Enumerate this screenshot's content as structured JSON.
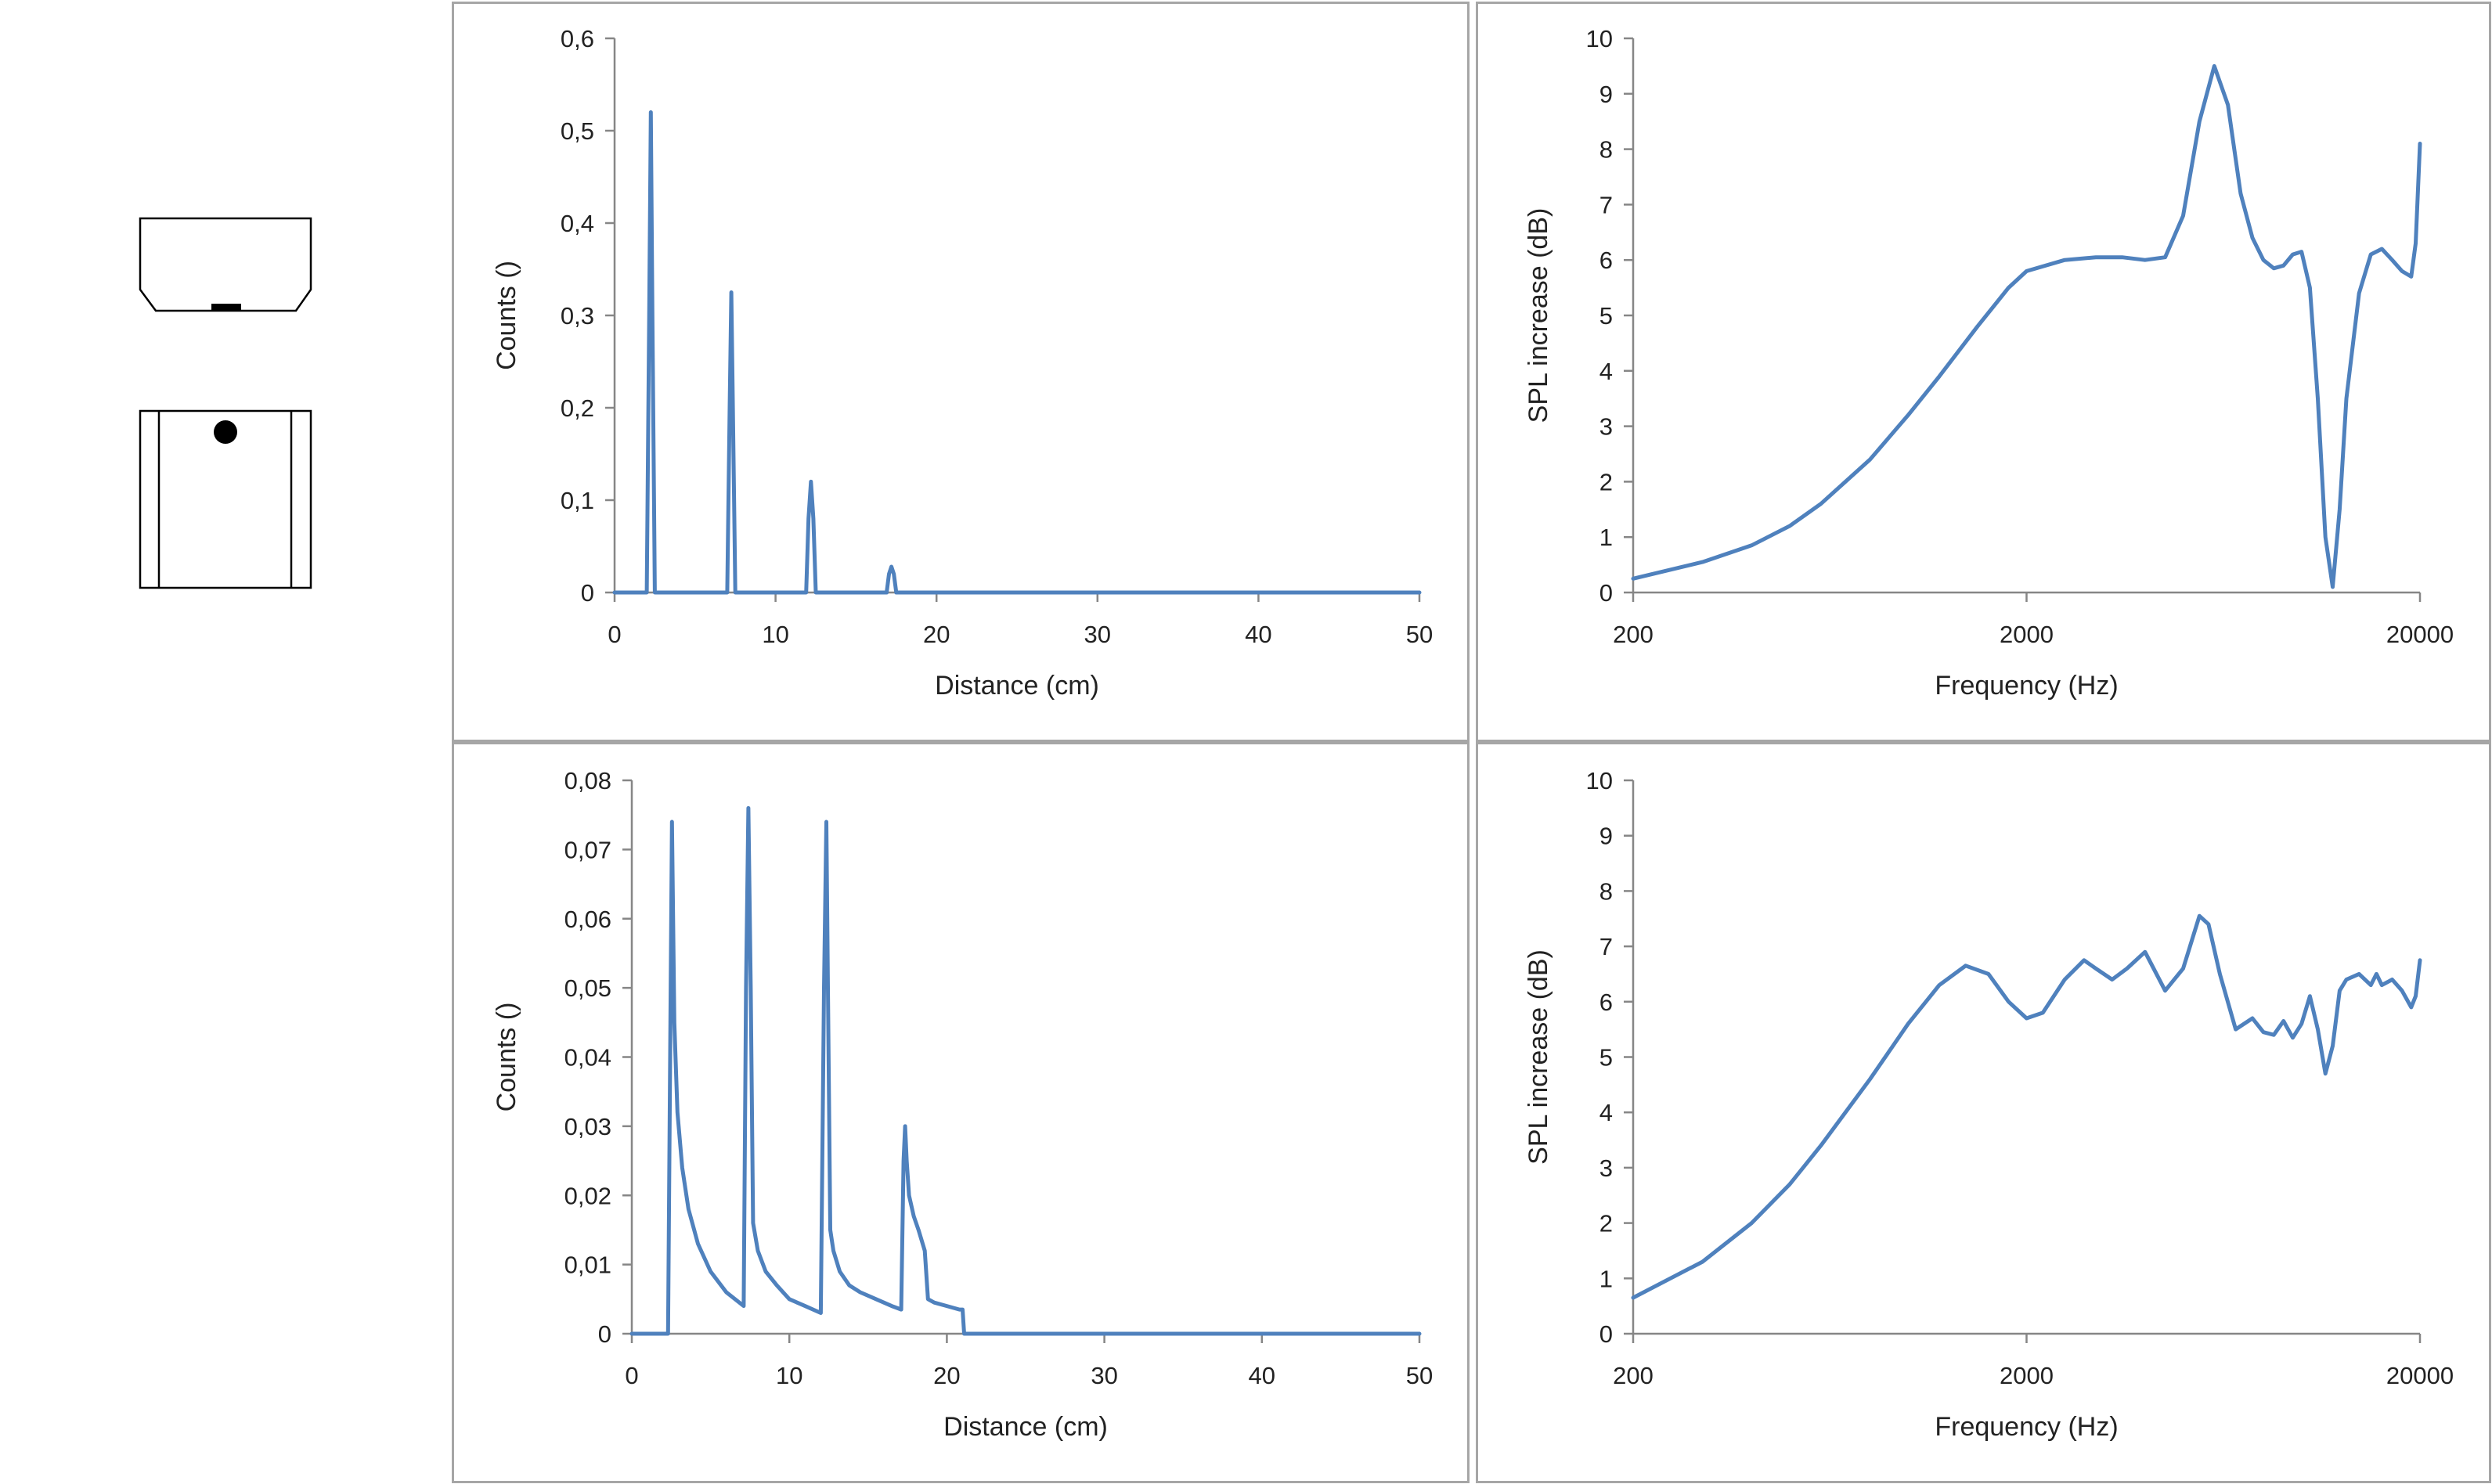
{
  "line_color": "#4f81bd",
  "chart_data": [
    {
      "id": "top-left",
      "type": "line",
      "xlabel": "Distance (cm)",
      "ylabel": "Counts ()",
      "xlim": [
        0,
        50
      ],
      "ylim": [
        0,
        0.6
      ],
      "x_scale": "linear",
      "xticks": [
        0,
        10,
        20,
        30,
        40,
        50
      ],
      "xtick_labels": [
        "0",
        "10",
        "20",
        "30",
        "40",
        "50"
      ],
      "yticks": [
        0,
        0.1,
        0.2,
        0.3,
        0.4,
        0.5,
        0.6
      ],
      "ytick_labels": [
        "0",
        "0,1",
        "0,2",
        "0,3",
        "0,4",
        "0,5",
        "0,6"
      ],
      "grid": false,
      "series": [
        {
          "x": [
            0,
            2.0,
            2.15,
            2.25,
            2.35,
            2.5,
            7.0,
            7.15,
            7.25,
            7.35,
            7.5,
            11.9,
            12.05,
            12.2,
            12.35,
            12.5,
            16.9,
            17.05,
            17.2,
            17.35,
            17.5,
            50
          ],
          "y": [
            0,
            0,
            0.3,
            0.52,
            0.3,
            0,
            0,
            0.2,
            0.325,
            0.2,
            0,
            0,
            0.08,
            0.12,
            0.08,
            0,
            0,
            0.02,
            0.028,
            0.02,
            0,
            0
          ]
        }
      ]
    },
    {
      "id": "top-right",
      "type": "line",
      "xlabel": "Frequency (Hz)",
      "ylabel": "SPL increase (dB)",
      "xlim": [
        200,
        20000
      ],
      "ylim": [
        0,
        10
      ],
      "x_scale": "log",
      "xticks": [
        200,
        2000,
        20000
      ],
      "xtick_labels": [
        "200",
        "2000",
        "20000"
      ],
      "yticks": [
        0,
        1,
        2,
        3,
        4,
        5,
        6,
        7,
        8,
        9,
        10
      ],
      "ytick_labels": [
        "0",
        "1",
        "2",
        "3",
        "4",
        "5",
        "6",
        "7",
        "8",
        "9",
        "10"
      ],
      "grid": false,
      "series": [
        {
          "x": [
            200,
            300,
            400,
            500,
            600,
            800,
            1000,
            1200,
            1500,
            1800,
            2000,
            2500,
            3000,
            3500,
            4000,
            4500,
            5000,
            5500,
            6000,
            6500,
            7000,
            7500,
            8000,
            8500,
            9000,
            9500,
            10000,
            10500,
            11000,
            11500,
            12000,
            12500,
            13000,
            14000,
            15000,
            16000,
            17000,
            18000,
            19000,
            19500,
            20000
          ],
          "y": [
            0.25,
            0.55,
            0.85,
            1.2,
            1.6,
            2.4,
            3.2,
            3.9,
            4.8,
            5.5,
            5.8,
            6.0,
            6.05,
            6.05,
            6.0,
            6.05,
            6.8,
            8.5,
            9.5,
            8.8,
            7.2,
            6.4,
            6.0,
            5.85,
            5.9,
            6.1,
            6.15,
            5.5,
            3.5,
            1.0,
            0.1,
            1.5,
            3.5,
            5.4,
            6.1,
            6.2,
            6.0,
            5.8,
            5.7,
            6.3,
            8.1
          ]
        }
      ]
    },
    {
      "id": "bottom-left",
      "type": "line",
      "xlabel": "Distance (cm)",
      "ylabel": "Counts ()",
      "xlim": [
        0,
        50
      ],
      "ylim": [
        0,
        0.08
      ],
      "x_scale": "linear",
      "xticks": [
        0,
        10,
        20,
        30,
        40,
        50
      ],
      "xtick_labels": [
        "0",
        "10",
        "20",
        "30",
        "40",
        "50"
      ],
      "yticks": [
        0,
        0.01,
        0.02,
        0.03,
        0.04,
        0.05,
        0.06,
        0.07,
        0.08
      ],
      "ytick_labels": [
        "0",
        "0,01",
        "0,02",
        "0,03",
        "0,04",
        "0,05",
        "0,06",
        "0,07",
        "0,08"
      ],
      "grid": false,
      "series": [
        {
          "x": [
            0,
            2.3,
            2.45,
            2.55,
            2.7,
            2.9,
            3.2,
            3.6,
            4.2,
            5.0,
            6.0,
            7.1,
            7.25,
            7.4,
            7.55,
            7.7,
            8.0,
            8.5,
            9.2,
            10.0,
            11.0,
            12.0,
            12.2,
            12.35,
            12.45,
            12.6,
            12.8,
            13.2,
            13.8,
            14.5,
            15.5,
            16.5,
            17.1,
            17.25,
            17.35,
            17.45,
            17.6,
            17.9,
            18.2,
            18.6,
            18.8,
            19.2,
            20.0,
            20.8,
            21.0,
            21.1,
            50
          ],
          "y": [
            0,
            0,
            0.045,
            0.074,
            0.045,
            0.032,
            0.024,
            0.018,
            0.013,
            0.009,
            0.006,
            0.004,
            0.05,
            0.076,
            0.05,
            0.016,
            0.012,
            0.009,
            0.007,
            0.005,
            0.004,
            0.003,
            0.05,
            0.074,
            0.05,
            0.015,
            0.012,
            0.009,
            0.007,
            0.006,
            0.005,
            0.004,
            0.0035,
            0.025,
            0.03,
            0.025,
            0.02,
            0.017,
            0.015,
            0.012,
            0.005,
            0.0045,
            0.004,
            0.0035,
            0.0035,
            0,
            0
          ]
        }
      ]
    },
    {
      "id": "bottom-right",
      "type": "line",
      "xlabel": "Frequency (Hz)",
      "ylabel": "SPL increase (dB)",
      "xlim": [
        200,
        20000
      ],
      "ylim": [
        0,
        10
      ],
      "x_scale": "log",
      "xticks": [
        200,
        2000,
        20000
      ],
      "xtick_labels": [
        "200",
        "2000",
        "20000"
      ],
      "yticks": [
        0,
        1,
        2,
        3,
        4,
        5,
        6,
        7,
        8,
        9,
        10
      ],
      "ytick_labels": [
        "0",
        "1",
        "2",
        "3",
        "4",
        "5",
        "6",
        "7",
        "8",
        "9",
        "10"
      ],
      "grid": false,
      "series": [
        {
          "x": [
            200,
            300,
            400,
            500,
            600,
            800,
            1000,
            1200,
            1400,
            1600,
            1800,
            2000,
            2200,
            2500,
            2800,
            3000,
            3300,
            3600,
            4000,
            4500,
            5000,
            5500,
            5800,
            6200,
            6800,
            7500,
            8000,
            8500,
            9000,
            9500,
            10000,
            10500,
            11000,
            11500,
            12000,
            12500,
            13000,
            14000,
            15000,
            15500,
            16000,
            17000,
            18000,
            19000,
            19500,
            20000
          ],
          "y": [
            0.65,
            1.3,
            2.0,
            2.7,
            3.4,
            4.6,
            5.6,
            6.3,
            6.65,
            6.5,
            6.0,
            5.7,
            5.8,
            6.4,
            6.75,
            6.6,
            6.4,
            6.6,
            6.9,
            6.2,
            6.6,
            7.55,
            7.4,
            6.5,
            5.5,
            5.7,
            5.45,
            5.4,
            5.65,
            5.35,
            5.6,
            6.1,
            5.5,
            4.7,
            5.2,
            6.2,
            6.4,
            6.5,
            6.3,
            6.5,
            6.3,
            6.4,
            6.2,
            5.9,
            6.1,
            6.75
          ]
        }
      ]
    }
  ]
}
